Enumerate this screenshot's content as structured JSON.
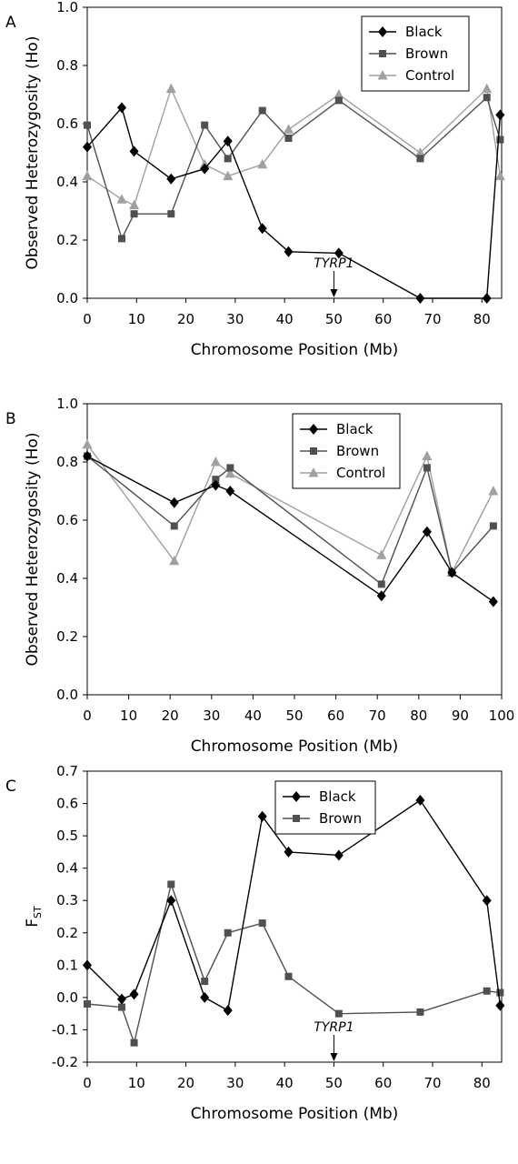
{
  "chart_data": [
    {
      "type": "line",
      "panel_label": "A",
      "xlabel": "Chromosome Position (Mb)",
      "ylabel": "Observed Heterozygosity (Ho)",
      "ylabel_sub": "",
      "xlim": [
        0,
        84
      ],
      "ylim": [
        0,
        1
      ],
      "xticks": [
        0,
        10,
        20,
        30,
        40,
        50,
        60,
        70,
        80
      ],
      "yticks": [
        0,
        0.2,
        0.4,
        0.6,
        0.8,
        1
      ],
      "ytick_decimals": 1,
      "legend": "top-right",
      "grid": false,
      "annotation": {
        "text": "TYRP1",
        "x": 50
      },
      "series": [
        {
          "name": "Black",
          "marker": "diamond",
          "color": "#000000",
          "x": [
            0,
            7,
            9.5,
            17,
            23.8,
            28.5,
            35.5,
            40.8,
            51,
            67.5,
            81,
            83.7
          ],
          "y": [
            0.52,
            0.655,
            0.505,
            0.41,
            0.445,
            0.54,
            0.24,
            0.16,
            0.155,
            0.0,
            0.0,
            0.63
          ]
        },
        {
          "name": "Brown",
          "marker": "square",
          "color": "#505050",
          "x": [
            0,
            7,
            9.5,
            17,
            23.8,
            28.5,
            35.5,
            40.8,
            51,
            67.5,
            81,
            83.7
          ],
          "y": [
            0.595,
            0.205,
            0.29,
            0.29,
            0.595,
            0.48,
            0.645,
            0.55,
            0.68,
            0.48,
            0.69,
            0.545
          ]
        },
        {
          "name": "Control",
          "marker": "triangle",
          "color": "#a0a0a0",
          "x": [
            0,
            7,
            9.5,
            17,
            23.8,
            28.5,
            35.5,
            40.8,
            51,
            67.5,
            81,
            83.7
          ],
          "y": [
            0.42,
            0.34,
            0.32,
            0.72,
            0.46,
            0.42,
            0.46,
            0.58,
            0.7,
            0.5,
            0.72,
            0.42
          ]
        }
      ]
    },
    {
      "type": "line",
      "panel_label": "B",
      "xlabel": "Chromosome Position (Mb)",
      "ylabel": "Observed Heterozygosity (Ho)",
      "ylabel_sub": "",
      "xlim": [
        0,
        100
      ],
      "ylim": [
        0,
        1
      ],
      "xticks": [
        0,
        10,
        20,
        30,
        40,
        50,
        60,
        70,
        80,
        90,
        100
      ],
      "yticks": [
        0,
        0.2,
        0.4,
        0.6,
        0.8,
        1
      ],
      "ytick_decimals": 1,
      "legend": "top-center",
      "grid": false,
      "annotation": null,
      "series": [
        {
          "name": "Black",
          "marker": "diamond",
          "color": "#000000",
          "x": [
            0,
            21,
            31,
            34.5,
            71,
            82,
            88,
            98
          ],
          "y": [
            0.82,
            0.66,
            0.72,
            0.7,
            0.34,
            0.56,
            0.42,
            0.32
          ]
        },
        {
          "name": "Brown",
          "marker": "square",
          "color": "#505050",
          "x": [
            0,
            21,
            31,
            34.5,
            71,
            82,
            88,
            98
          ],
          "y": [
            0.82,
            0.58,
            0.74,
            0.78,
            0.38,
            0.78,
            0.42,
            0.58
          ]
        },
        {
          "name": "Control",
          "marker": "triangle",
          "color": "#a0a0a0",
          "x": [
            0,
            21,
            31,
            34.5,
            71,
            82,
            88,
            98
          ],
          "y": [
            0.86,
            0.46,
            0.8,
            0.76,
            0.48,
            0.82,
            0.42,
            0.7
          ]
        }
      ]
    },
    {
      "type": "line",
      "panel_label": "C",
      "xlabel": "Chromosome Position (Mb)",
      "ylabel": "F",
      "ylabel_sub": "ST",
      "xlim": [
        0,
        84
      ],
      "ylim": [
        -0.2,
        0.7
      ],
      "xticks": [
        0,
        10,
        20,
        30,
        40,
        50,
        60,
        70,
        80
      ],
      "yticks": [
        -0.2,
        -0.1,
        0,
        0.1,
        0.2,
        0.3,
        0.4,
        0.5,
        0.6,
        0.7
      ],
      "ytick_decimals": 1,
      "legend": "top-center",
      "grid": false,
      "annotation": {
        "text": "TYRP1",
        "x": 50
      },
      "series": [
        {
          "name": "Black",
          "marker": "diamond",
          "color": "#000000",
          "x": [
            0,
            7,
            9.5,
            17,
            23.8,
            28.5,
            35.5,
            40.8,
            51,
            67.5,
            81,
            83.7
          ],
          "y": [
            0.1,
            -0.005,
            0.01,
            0.3,
            0.0,
            -0.04,
            0.56,
            0.45,
            0.44,
            0.61,
            0.3,
            -0.025
          ]
        },
        {
          "name": "Brown",
          "marker": "square",
          "color": "#505050",
          "x": [
            0,
            7,
            9.5,
            17,
            23.8,
            28.5,
            35.5,
            40.8,
            51,
            67.5,
            81,
            83.7
          ],
          "y": [
            -0.02,
            -0.03,
            -0.14,
            0.35,
            0.05,
            0.2,
            0.23,
            0.065,
            -0.05,
            -0.045,
            0.02,
            0.015
          ]
        }
      ]
    }
  ]
}
